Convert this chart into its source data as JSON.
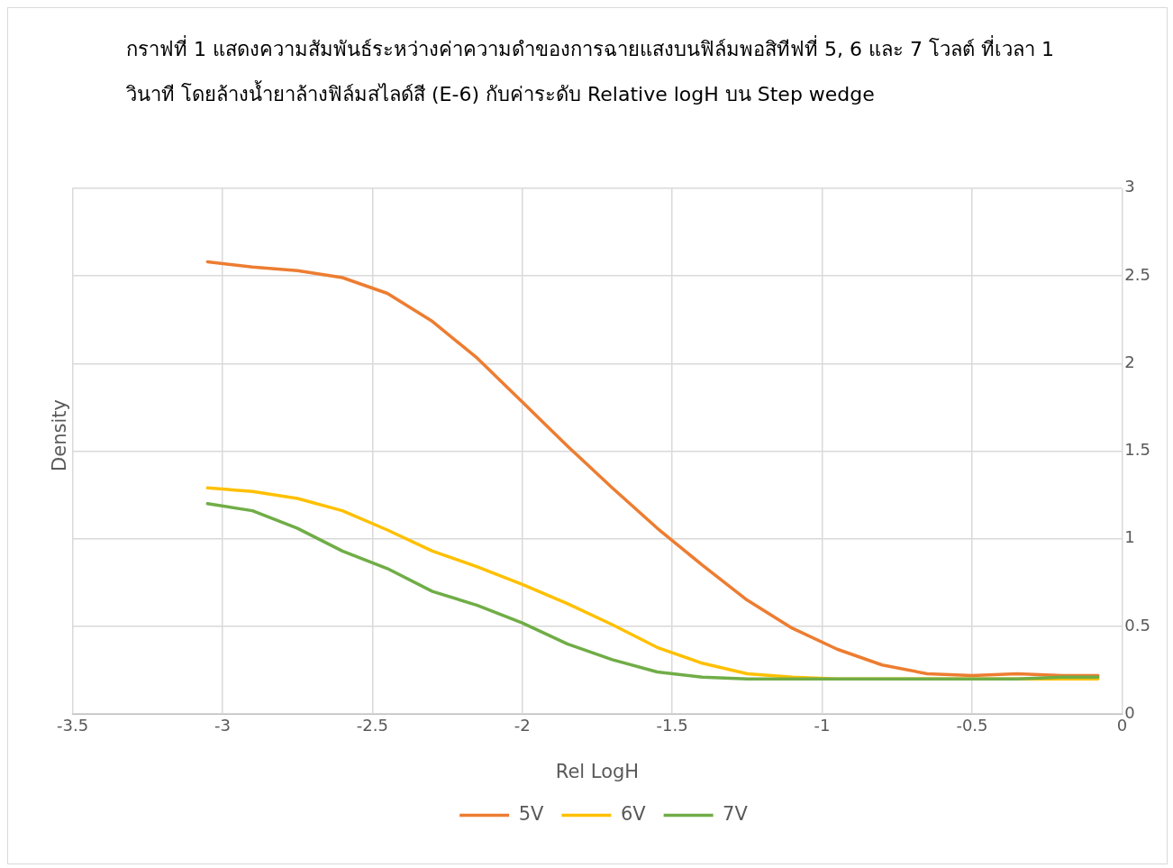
{
  "chart_data": {
    "type": "line",
    "title": "กราฟที่ 1 แสดงความสัมพันธ์ระหว่างค่าความดำของการฉายแสงบนฟิล์มพอสิทีฟที่ 5, 6 และ 7 โวลต์ ที่เวลา 1 วินาที โดยล้างน้ำยาล้างฟิล์มสไลด์สี (E-6) กับค่าระดับ Relative logH บน Step wedge",
    "xlabel": "Rel LogH",
    "ylabel": "Density",
    "x": [
      -3.05,
      -2.9,
      -2.75,
      -2.6,
      -2.45,
      -2.3,
      -2.15,
      -2.0,
      -1.85,
      -1.7,
      -1.55,
      -1.4,
      -1.25,
      -1.1,
      -0.95,
      -0.8,
      -0.65,
      -0.5,
      -0.35,
      -0.2,
      -0.08
    ],
    "series": [
      {
        "name": "5V",
        "color": "#ed7d31",
        "values": [
          2.58,
          2.55,
          2.53,
          2.49,
          2.4,
          2.24,
          2.03,
          1.78,
          1.53,
          1.29,
          1.06,
          0.85,
          0.65,
          0.49,
          0.37,
          0.28,
          0.23,
          0.22,
          0.23,
          0.22,
          0.22
        ]
      },
      {
        "name": "6V",
        "color": "#ffc000",
        "values": [
          1.29,
          1.27,
          1.23,
          1.16,
          1.05,
          0.93,
          0.84,
          0.74,
          0.63,
          0.51,
          0.38,
          0.29,
          0.23,
          0.21,
          0.2,
          0.2,
          0.2,
          0.2,
          0.2,
          0.2,
          0.2
        ]
      },
      {
        "name": "7V",
        "color": "#70ad47",
        "values": [
          1.2,
          1.16,
          1.06,
          0.93,
          0.83,
          0.7,
          0.62,
          0.52,
          0.4,
          0.31,
          0.24,
          0.21,
          0.2,
          0.2,
          0.2,
          0.2,
          0.2,
          0.2,
          0.2,
          0.21,
          0.21
        ]
      }
    ],
    "xlim": [
      -3.5,
      0
    ],
    "xticks": [
      -3.5,
      -3,
      -2.5,
      -2,
      -1.5,
      -1,
      -0.5,
      0
    ],
    "ylim": [
      0,
      3
    ],
    "yticks": [
      0,
      0.5,
      1,
      1.5,
      2,
      2.5,
      3
    ],
    "grid": true,
    "legend": "bottom",
    "marker": "none",
    "line_style": "solid"
  }
}
